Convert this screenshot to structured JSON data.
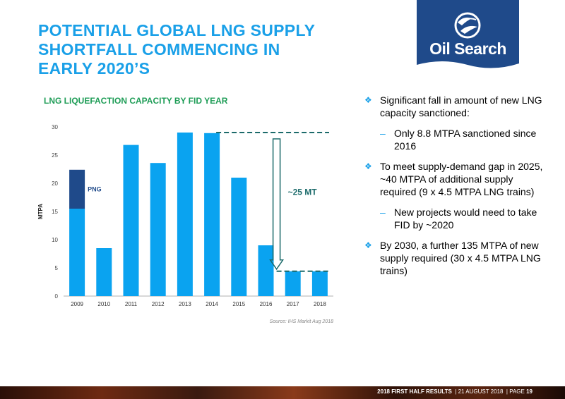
{
  "slide": {
    "title_line1": "POTENTIAL GLOBAL LNG SUPPLY",
    "title_line2": "SHORTFALL COMMENCING IN",
    "title_line3": "EARLY 2020’S",
    "logo_text": "Oil Search"
  },
  "chart_data": {
    "type": "bar",
    "title": "LNG LIQUEFACTION CAPACITY BY FID YEAR",
    "ylabel": "MTPA",
    "xlabel": "",
    "ylim": [
      0,
      30
    ],
    "yticks": [
      0,
      5,
      10,
      15,
      20,
      25,
      30
    ],
    "categories": [
      "2009",
      "2010",
      "2011",
      "2012",
      "2013",
      "2014",
      "2015",
      "2016",
      "2017",
      "2018"
    ],
    "series": [
      {
        "name": "",
        "color": "#0aa3f0",
        "values": [
          15.5,
          8.5,
          26.8,
          23.6,
          29.0,
          28.9,
          21.0,
          9.0,
          4.4,
          4.4
        ]
      },
      {
        "name": "PNG",
        "color": "#1f4a8a",
        "values": [
          6.9,
          0,
          0,
          0,
          0,
          0,
          0,
          0,
          0,
          0
        ]
      }
    ],
    "series_label": "PNG",
    "annotation": "~25 MT",
    "source": "Source: IHS Markit Aug 2018",
    "reference_lines": [
      29,
      4.4
    ]
  },
  "bullets": {
    "b1": "Significant fall in amount of new LNG capacity sanctioned:",
    "b1_sub": "Only 8.8 MTPA sanctioned since 2016",
    "b2": "To meet supply-demand gap in 2025, ~40 MTPA of additional supply required (9 x 4.5 MTPA LNG trains)",
    "b2_sub": "New projects would need to take FID by ~2020",
    "b3": "By 2030, a further 135 MTPA of new supply required (30 x 4.5 MTPA LNG trains)"
  },
  "footer": {
    "label": "2018 FIRST HALF RESULTS",
    "date": "21 AUGUST 2018",
    "page_label": "PAGE",
    "page_number": "19"
  },
  "colors": {
    "accent": "#1aa0e8",
    "bar": "#0aa3f0",
    "png": "#1f4a8a",
    "teal": "#1b6a6a",
    "green": "#1f9d57",
    "navy": "#1f4a8a"
  }
}
